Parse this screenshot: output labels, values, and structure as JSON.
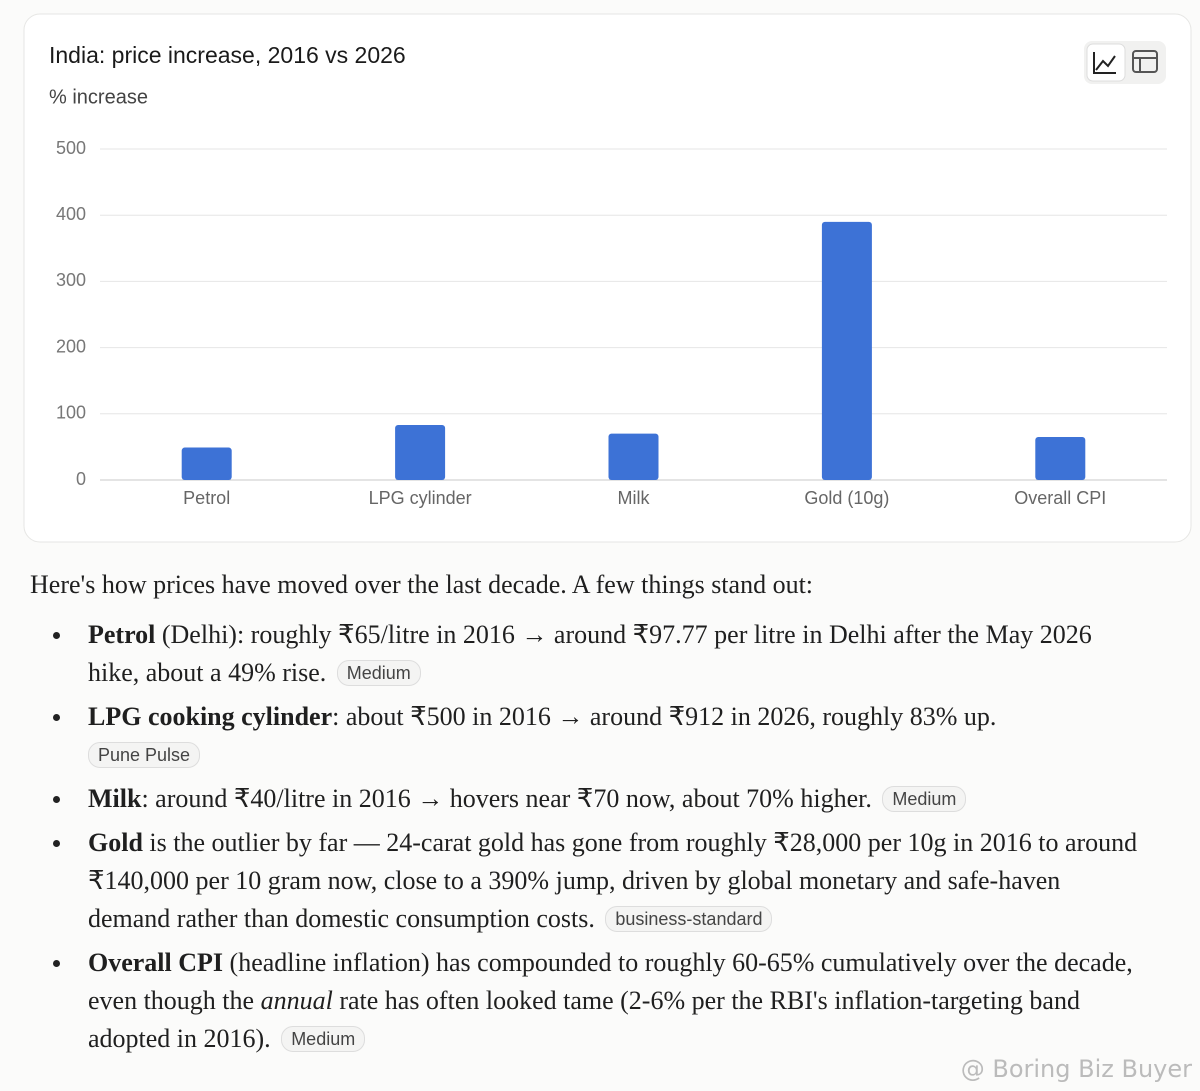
{
  "chart_data": {
    "type": "bar",
    "title": "India: price increase, 2016 vs 2026",
    "subtitle": "% increase",
    "categories": [
      "Petrol",
      "LPG cylinder",
      "Milk",
      "Gold (10g)",
      "Overall CPI"
    ],
    "values": [
      49,
      83,
      70,
      390,
      65
    ],
    "color": "#3d72d6",
    "ylim": [
      0,
      500
    ],
    "yticks": [
      0,
      100,
      200,
      300,
      400,
      500
    ],
    "grid": true
  },
  "intro": "Here's how prices have moved over the last decade. A few things stand out:",
  "bullets": [
    {
      "bold": "Petrol",
      "text": " (Delhi): roughly ₹65/litre in 2016 → around ₹97.77 per litre in Delhi after the May 2026 hike, about a 49% rise.",
      "source": "Medium"
    },
    {
      "bold": "LPG cooking cylinder",
      "text": ": about ₹500 in 2016 → around ₹912 in 2026, roughly 83% up.",
      "source": "Pune Pulse"
    },
    {
      "bold": "Milk",
      "text": ": around ₹40/litre in 2016 → hovers near ₹70 now, about 70% higher.",
      "source": "Medium"
    },
    {
      "bold": "Gold",
      "text": " is the outlier by far — 24-carat gold has gone from roughly ₹28,000 per 10g in 2016 to around ₹140,000 per 10 gram now, close to a 390% jump, driven by global monetary and safe-haven demand rather than domestic consumption costs.",
      "source": "business-standard"
    },
    {
      "bold": "Overall CPI",
      "text": " (headline inflation) has compounded to roughly 60-65% cumulatively over the decade, even though the ",
      "italic": "annual",
      "text2": " rate has often looked tame (2-6% per the RBI's inflation-targeting band adopted in 2016).",
      "source": "Medium"
    }
  ],
  "watermark": "@ Boring Biz Buyer"
}
